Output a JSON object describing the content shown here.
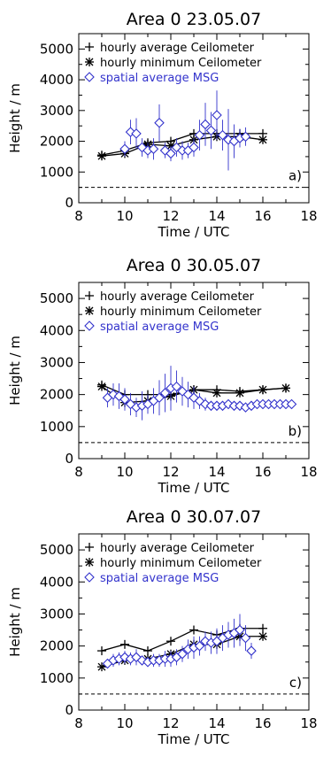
{
  "chart_data": [
    {
      "type": "line",
      "title": "Area 0   23.05.07",
      "xlabel": "Time / UTC",
      "ylabel": "Height / m",
      "xlim": [
        8,
        18
      ],
      "ylim": [
        0,
        5500
      ],
      "xticks": [
        "8",
        "10",
        "12",
        "14",
        "16",
        "18"
      ],
      "yticks": [
        "0",
        "1000",
        "2000",
        "3000",
        "4000",
        "5000"
      ],
      "panel_label": "a)",
      "reference_line": 500,
      "colors": {
        "ceilometer": "#000000",
        "msg": "#3333cc"
      },
      "legend": [
        "hourly average Ceilometer",
        "hourly minimum Ceilometer",
        "spatial average MSG"
      ],
      "series": [
        {
          "name": "hourly average Ceilometer",
          "marker": "plus",
          "x": [
            9,
            10,
            11,
            12,
            13,
            14,
            15,
            16
          ],
          "y": [
            1550,
            1700,
            1950,
            2000,
            2250,
            2250,
            2250,
            2250
          ]
        },
        {
          "name": "hourly minimum Ceilometer",
          "marker": "asterisk",
          "x": [
            9,
            10,
            11,
            12,
            13,
            14,
            15,
            16
          ],
          "y": [
            1520,
            1600,
            1900,
            1850,
            2050,
            2150,
            2150,
            2050
          ]
        },
        {
          "name": "spatial average MSG",
          "marker": "diamond",
          "x": [
            10.0,
            10.25,
            10.5,
            10.75,
            11.0,
            11.25,
            11.5,
            11.75,
            12.0,
            12.25,
            12.5,
            12.75,
            13.0,
            13.25,
            13.5,
            13.75,
            14.0,
            14.25,
            14.5,
            14.75,
            15.0,
            15.25
          ],
          "y": [
            1750,
            2300,
            2250,
            1800,
            1700,
            1750,
            2600,
            1700,
            1600,
            1800,
            1700,
            1700,
            1800,
            2200,
            2550,
            2350,
            2850,
            2200,
            2050,
            2000,
            2100,
            2150
          ],
          "err": [
            250,
            400,
            500,
            300,
            250,
            350,
            600,
            250,
            250,
            300,
            300,
            250,
            300,
            500,
            700,
            600,
            800,
            500,
            1000,
            550,
            300,
            300
          ]
        }
      ]
    },
    {
      "type": "line",
      "title": "Area 0   30.05.07",
      "xlabel": "Time / UTC",
      "ylabel": "Height / m",
      "xlim": [
        8,
        18
      ],
      "ylim": [
        0,
        5500
      ],
      "xticks": [
        "8",
        "10",
        "12",
        "14",
        "16",
        "18"
      ],
      "yticks": [
        "0",
        "1000",
        "2000",
        "3000",
        "4000",
        "5000"
      ],
      "panel_label": "b)",
      "reference_line": 500,
      "colors": {
        "ceilometer": "#000000",
        "msg": "#3333cc"
      },
      "legend": [
        "hourly average Ceilometer",
        "hourly minimum Ceilometer",
        "spatial average MSG"
      ],
      "series": [
        {
          "name": "hourly average Ceilometer",
          "marker": "plus",
          "x": [
            9,
            10,
            11,
            12,
            13,
            14,
            15,
            16,
            17
          ],
          "y": [
            2300,
            2000,
            2000,
            2000,
            2150,
            2150,
            2100,
            2150,
            2200
          ]
        },
        {
          "name": "hourly minimum Ceilometer",
          "marker": "asterisk",
          "x": [
            9,
            10,
            11,
            12,
            13,
            14,
            15,
            16,
            17
          ],
          "y": [
            2250,
            1750,
            1800,
            1950,
            2150,
            2050,
            2050,
            2150,
            2200
          ]
        },
        {
          "name": "spatial average MSG",
          "marker": "diamond",
          "x": [
            9.25,
            9.5,
            9.75,
            10.0,
            10.25,
            10.5,
            10.75,
            11.0,
            11.25,
            11.5,
            11.75,
            12.0,
            12.25,
            12.5,
            12.75,
            13.0,
            13.25,
            13.5,
            13.75,
            14.0,
            14.25,
            14.5,
            14.75,
            15.0,
            15.25,
            15.5,
            15.75,
            16.0,
            16.25,
            16.5,
            16.75,
            17.0,
            17.25
          ],
          "y": [
            1900,
            2000,
            1950,
            1850,
            1700,
            1600,
            1650,
            1700,
            1800,
            1900,
            2050,
            2200,
            2250,
            2100,
            2000,
            1900,
            1800,
            1700,
            1650,
            1650,
            1650,
            1700,
            1650,
            1650,
            1600,
            1650,
            1700,
            1700,
            1700,
            1700,
            1700,
            1700,
            1700
          ],
          "err": [
            300,
            350,
            400,
            350,
            350,
            300,
            450,
            300,
            400,
            550,
            600,
            700,
            500,
            450,
            400,
            350,
            250,
            200,
            150,
            150,
            100,
            100,
            100,
            100,
            100,
            100,
            100,
            100,
            100,
            100,
            100,
            100,
            100
          ]
        }
      ]
    },
    {
      "type": "line",
      "title": "Area 0   30.07.07",
      "xlabel": "Time / UTC",
      "ylabel": "Height / m",
      "xlim": [
        8,
        18
      ],
      "ylim": [
        0,
        5500
      ],
      "xticks": [
        "8",
        "10",
        "12",
        "14",
        "16",
        "18"
      ],
      "yticks": [
        "0",
        "1000",
        "2000",
        "3000",
        "4000",
        "5000"
      ],
      "panel_label": "c)",
      "reference_line": 500,
      "colors": {
        "ceilometer": "#000000",
        "msg": "#3333cc"
      },
      "legend": [
        "hourly average Ceilometer",
        "hourly minimum Ceilometer",
        "spatial average MSG"
      ],
      "series": [
        {
          "name": "hourly average Ceilometer",
          "marker": "plus",
          "x": [
            9,
            10,
            11,
            12,
            13,
            14,
            15,
            16
          ],
          "y": [
            1850,
            2050,
            1850,
            2150,
            2500,
            2350,
            2550,
            2550
          ]
        },
        {
          "name": "hourly minimum Ceilometer",
          "marker": "asterisk",
          "x": [
            9,
            10,
            11,
            12,
            13,
            14,
            15,
            16
          ],
          "y": [
            1350,
            1550,
            1600,
            1750,
            2050,
            2050,
            2300,
            2300
          ]
        },
        {
          "name": "spatial average MSG",
          "marker": "diamond",
          "x": [
            9.25,
            9.5,
            9.75,
            10.0,
            10.25,
            10.5,
            10.75,
            11.0,
            11.25,
            11.5,
            11.75,
            12.0,
            12.25,
            12.5,
            12.75,
            13.0,
            13.25,
            13.5,
            13.75,
            14.0,
            14.25,
            14.5,
            14.75,
            15.0,
            15.25,
            15.5
          ],
          "y": [
            1450,
            1550,
            1600,
            1650,
            1600,
            1650,
            1550,
            1500,
            1550,
            1550,
            1600,
            1600,
            1650,
            1750,
            1900,
            1950,
            2000,
            2150,
            2100,
            2150,
            2250,
            2350,
            2400,
            2500,
            2250,
            1850
          ],
          "err": [
            150,
            200,
            200,
            200,
            200,
            250,
            150,
            150,
            200,
            200,
            250,
            250,
            250,
            250,
            300,
            350,
            300,
            300,
            350,
            400,
            400,
            400,
            450,
            500,
            400,
            250
          ]
        }
      ]
    }
  ]
}
